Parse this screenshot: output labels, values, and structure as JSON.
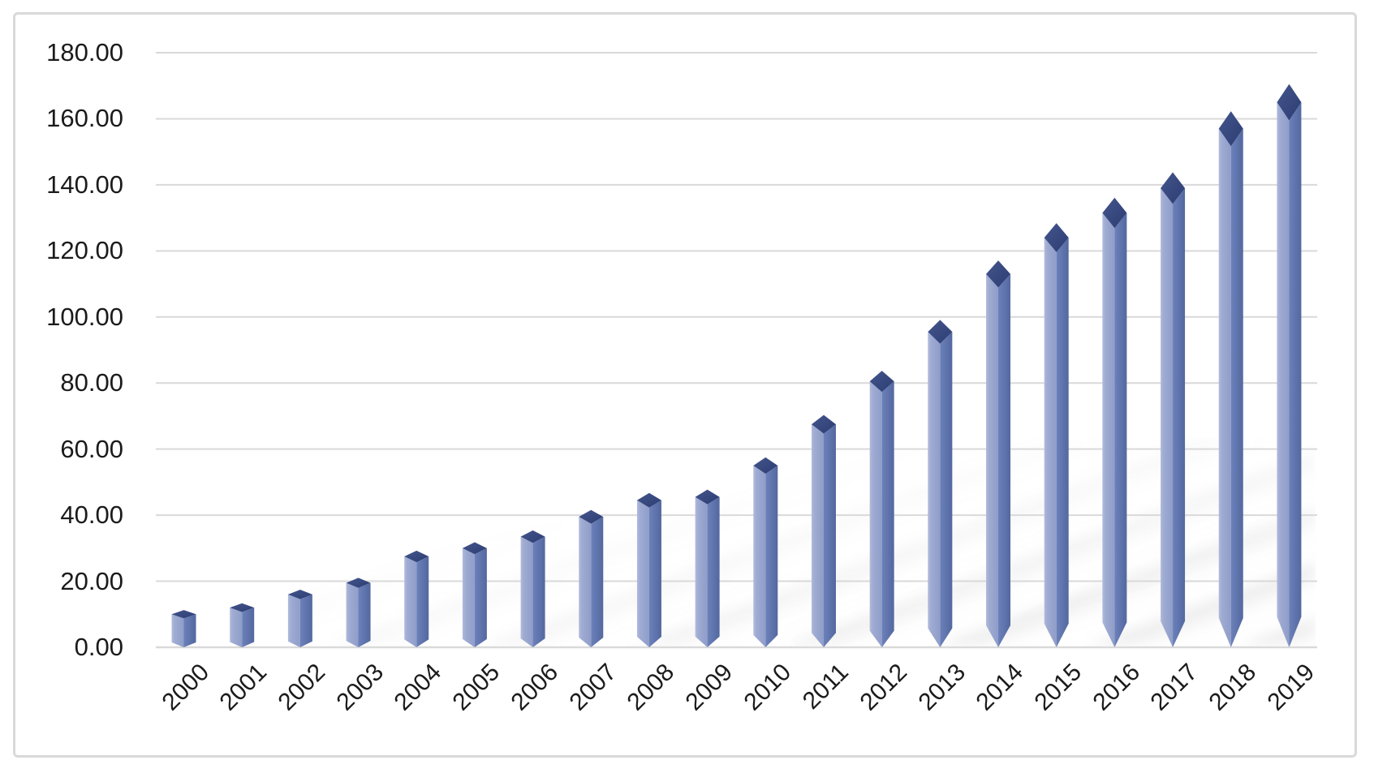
{
  "chart_data": {
    "type": "bar",
    "title": "",
    "subtitle": "",
    "xlabel": "",
    "ylabel": "",
    "categories": [
      "2000",
      "2001",
      "2002",
      "2003",
      "2004",
      "2005",
      "2006",
      "2007",
      "2008",
      "2009",
      "2010",
      "2011",
      "2012",
      "2013",
      "2014",
      "2015",
      "2016",
      "2017",
      "2018",
      "2019"
    ],
    "values": [
      10.0,
      12.0,
      16.0,
      19.5,
      27.5,
      30.0,
      33.5,
      39.5,
      44.5,
      45.5,
      55.0,
      67.5,
      80.5,
      95.5,
      113.0,
      124.0,
      131.5,
      139.0,
      157.0,
      165.0
    ],
    "ylim": [
      0,
      180
    ],
    "ytick_step": 20,
    "y_tick_labels": [
      "180.00",
      "160.00",
      "140.00",
      "120.00",
      "100.00",
      "80.00",
      "60.00",
      "40.00",
      "20.00",
      "0.00"
    ],
    "grid": true,
    "legend": false,
    "bar_style": "3d-crystal-column",
    "x_label_rotation_deg": -45,
    "colors": {
      "bar_left_face_light": "#b2bbdb",
      "bar_left_face": "#8e9dc9",
      "bar_right_face_light": "#6c81ba",
      "bar_right_face": "#53689f",
      "bar_cap_light": "#44558d",
      "bar_cap_dark": "#2c3d72",
      "gridline": "#d9d9d9",
      "axis_text": "#1b1b1b",
      "frame_border": "#d9d9d9",
      "background": "#ffffff",
      "floor_shadow": "#6e6e6e"
    }
  }
}
